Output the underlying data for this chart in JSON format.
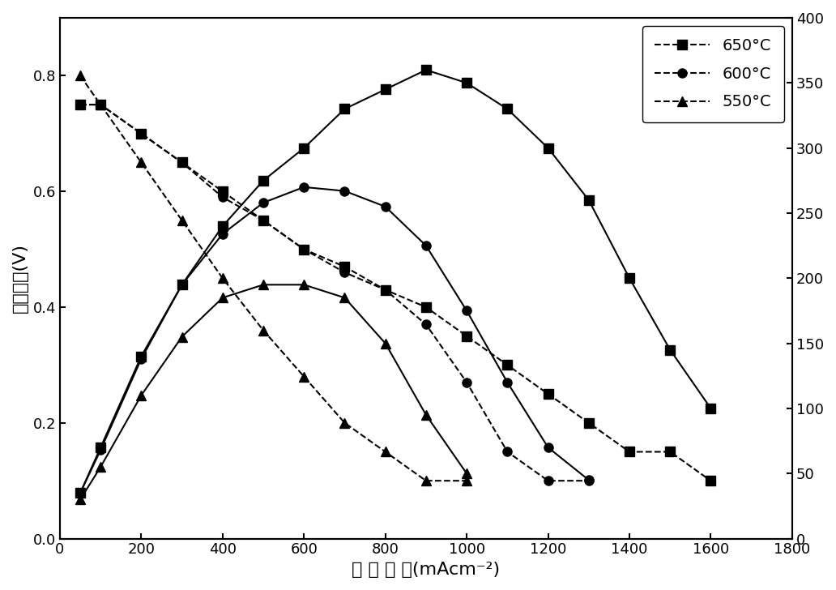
{
  "xlabel": "电 流 密 度(mAcm⁻²)",
  "ylabel_left": "开路电压(V)",
  "xlim": [
    0,
    1800
  ],
  "ylim_left": [
    0.0,
    0.9
  ],
  "ylim_right": [
    0,
    400
  ],
  "xticks": [
    0,
    200,
    400,
    600,
    800,
    1000,
    1200,
    1400,
    1600,
    1800
  ],
  "yticks_left": [
    0.0,
    0.2,
    0.4,
    0.6,
    0.8
  ],
  "yticks_right": [
    0,
    50,
    100,
    150,
    200,
    250,
    300,
    350,
    400
  ],
  "volt_650_x": [
    50,
    100,
    200,
    300,
    400,
    500,
    600,
    700,
    800,
    900,
    1000,
    1100,
    1200,
    1300,
    1400,
    1500,
    1600
  ],
  "volt_650_y": [
    0.75,
    0.75,
    0.7,
    0.65,
    0.6,
    0.55,
    0.5,
    0.47,
    0.43,
    0.4,
    0.35,
    0.3,
    0.25,
    0.2,
    0.15,
    0.15,
    0.1
  ],
  "pow_650_x": [
    50,
    100,
    200,
    300,
    400,
    500,
    600,
    700,
    800,
    900,
    1000,
    1100,
    1200,
    1300,
    1400,
    1500,
    1600
  ],
  "pow_650_y": [
    35,
    70,
    140,
    195,
    240,
    275,
    300,
    330,
    345,
    360,
    350,
    330,
    300,
    260,
    200,
    145,
    100
  ],
  "volt_600_x": [
    50,
    100,
    200,
    300,
    400,
    500,
    600,
    700,
    800,
    900,
    1000,
    1100,
    1200,
    1300
  ],
  "volt_600_y": [
    0.75,
    0.75,
    0.7,
    0.65,
    0.59,
    0.55,
    0.5,
    0.46,
    0.43,
    0.37,
    0.27,
    0.15,
    0.1,
    0.1
  ],
  "pow_600_x": [
    50,
    100,
    200,
    300,
    400,
    500,
    600,
    700,
    800,
    900,
    1000,
    1100,
    1200,
    1300
  ],
  "pow_600_y": [
    35,
    68,
    138,
    195,
    234,
    258,
    270,
    267,
    255,
    225,
    175,
    120,
    70,
    45
  ],
  "volt_550_x": [
    50,
    100,
    200,
    300,
    400,
    500,
    600,
    700,
    800,
    900,
    1000
  ],
  "volt_550_y": [
    0.8,
    0.75,
    0.65,
    0.55,
    0.45,
    0.36,
    0.28,
    0.2,
    0.15,
    0.1,
    0.1
  ],
  "pow_550_x": [
    50,
    100,
    200,
    300,
    400,
    500,
    600,
    700,
    800,
    900,
    1000
  ],
  "pow_550_y": [
    30,
    55,
    110,
    155,
    185,
    195,
    195,
    185,
    150,
    95,
    50
  ],
  "background_color": "#ffffff",
  "line_color": "#000000",
  "markersize": 8,
  "linewidth": 1.5,
  "dpi": 100,
  "legend_650": "650°C",
  "legend_600": "600°C",
  "legend_550": "550°C"
}
